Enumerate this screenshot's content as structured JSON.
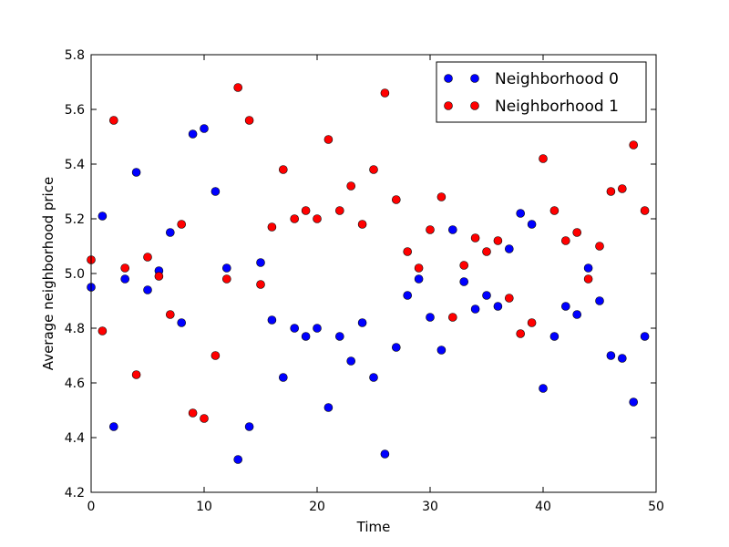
{
  "chart_data": {
    "type": "scatter",
    "title": "",
    "xlabel": "Time",
    "ylabel": "Average neighborhood price",
    "xlim": [
      0,
      50
    ],
    "ylim": [
      4.2,
      5.8
    ],
    "xticks": [
      "0",
      "10",
      "20",
      "30",
      "40",
      "50"
    ],
    "yticks": [
      "4.2",
      "4.4",
      "4.6",
      "4.8",
      "5.0",
      "5.2",
      "5.4",
      "5.6",
      "5.8"
    ],
    "grid": false,
    "legend": "top-right",
    "series": [
      {
        "name": "Neighborhood 0",
        "color": "#0000ff",
        "x": [
          0,
          1,
          2,
          3,
          4,
          5,
          6,
          7,
          8,
          9,
          10,
          11,
          12,
          13,
          14,
          15,
          16,
          17,
          18,
          19,
          20,
          21,
          22,
          23,
          24,
          25,
          26,
          27,
          28,
          29,
          30,
          31,
          32,
          33,
          34,
          35,
          36,
          37,
          38,
          39,
          40,
          41,
          42,
          43,
          44,
          45,
          46,
          47,
          48,
          49
        ],
        "y": [
          4.95,
          5.21,
          4.44,
          4.98,
          5.37,
          4.94,
          5.01,
          5.15,
          4.82,
          5.51,
          5.53,
          5.3,
          5.02,
          4.32,
          4.44,
          5.04,
          4.83,
          4.62,
          4.8,
          4.77,
          4.8,
          4.51,
          4.77,
          4.68,
          4.82,
          4.62,
          4.34,
          4.73,
          4.92,
          4.98,
          4.84,
          4.72,
          5.16,
          4.97,
          4.87,
          4.92,
          4.88,
          5.09,
          5.22,
          5.18,
          4.58,
          4.77,
          4.88,
          4.85,
          5.02,
          4.9,
          4.7,
          4.69,
          4.53,
          4.77
        ]
      },
      {
        "name": "Neighborhood 1",
        "color": "#ff0000",
        "x": [
          0,
          1,
          2,
          3,
          4,
          5,
          6,
          7,
          8,
          9,
          10,
          11,
          12,
          13,
          14,
          15,
          16,
          17,
          18,
          19,
          20,
          21,
          22,
          23,
          24,
          25,
          26,
          27,
          28,
          29,
          30,
          31,
          32,
          33,
          34,
          35,
          36,
          37,
          38,
          39,
          40,
          41,
          42,
          43,
          44,
          45,
          46,
          47,
          48,
          49
        ],
        "y": [
          5.05,
          4.79,
          5.56,
          5.02,
          4.63,
          5.06,
          4.99,
          4.85,
          5.18,
          4.49,
          4.47,
          4.7,
          4.98,
          5.68,
          5.56,
          4.96,
          5.17,
          5.38,
          5.2,
          5.23,
          5.2,
          5.49,
          5.23,
          5.32,
          5.18,
          5.38,
          5.66,
          5.27,
          5.08,
          5.02,
          5.16,
          5.28,
          4.84,
          5.03,
          5.13,
          5.08,
          5.12,
          4.91,
          4.78,
          4.82,
          5.42,
          5.23,
          5.12,
          5.15,
          4.98,
          5.1,
          5.3,
          5.31,
          5.47,
          5.23
        ]
      }
    ]
  }
}
